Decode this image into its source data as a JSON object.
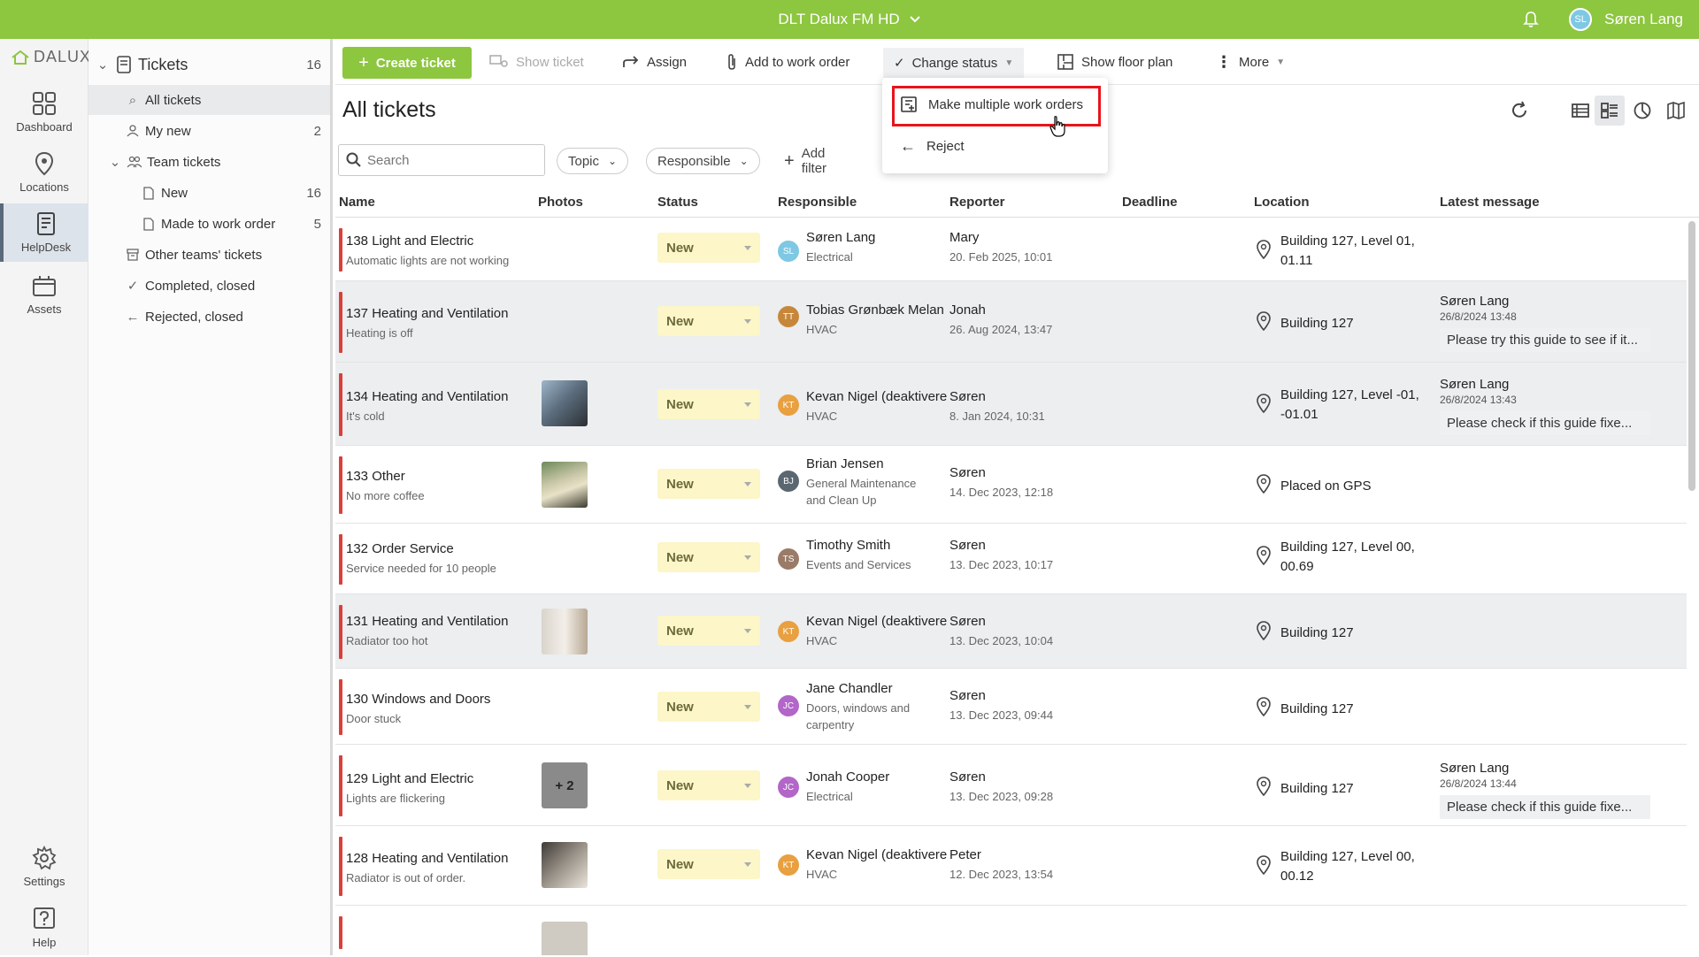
{
  "topbar": {
    "title": "DLT Dalux FM HD",
    "user_initials": "SL",
    "user_name": "Søren Lang"
  },
  "logo": {
    "text": "DALUX"
  },
  "leftnav": {
    "items": [
      {
        "label": "Dashboard",
        "icon": "grid-icon"
      },
      {
        "label": "Locations",
        "icon": "location-pin-icon"
      },
      {
        "label": "HelpDesk",
        "icon": "helpdesk-icon"
      },
      {
        "label": "Assets",
        "icon": "assets-icon"
      },
      {
        "label": "Settings",
        "icon": "gear-icon"
      },
      {
        "label": "Help",
        "icon": "help-icon"
      }
    ]
  },
  "tree": {
    "root": {
      "label": "Tickets",
      "count": "16"
    },
    "items": [
      {
        "label": "All tickets",
        "count": ""
      },
      {
        "label": "My new",
        "count": "2"
      },
      {
        "label": "Team tickets",
        "count": ""
      },
      {
        "label": "New",
        "count": "16"
      },
      {
        "label": "Made to work order",
        "count": "5"
      },
      {
        "label": "Other teams' tickets",
        "count": ""
      },
      {
        "label": "Completed, closed",
        "count": ""
      },
      {
        "label": "Rejected, closed",
        "count": ""
      }
    ]
  },
  "toolbar": {
    "create": "Create ticket",
    "show": "Show ticket",
    "assign": "Assign",
    "add_work_order": "Add to work order",
    "change_status": "Change status",
    "floor_plan": "Show floor plan",
    "more": "More"
  },
  "dropdown": {
    "item1": "Make multiple work orders",
    "item2": "Reject"
  },
  "page": {
    "title": "All tickets"
  },
  "filters": {
    "search_placeholder": "Search",
    "topic": "Topic",
    "responsible": "Responsible",
    "add_filter": "Add filter"
  },
  "columns": {
    "name": "Name",
    "photos": "Photos",
    "status": "Status",
    "responsible": "Responsible",
    "reporter": "Reporter",
    "deadline": "Deadline",
    "location": "Location",
    "latest": "Latest message"
  },
  "rows": [
    {
      "title": "138 Light and Electric",
      "sub": "Automatic lights are not working",
      "status": "New",
      "initials": "SL",
      "av_color": "#7ec8e3",
      "resp": "Søren Lang",
      "group": "Electrical",
      "reporter": "Mary",
      "date": "20. Feb 2025, 10:01",
      "location": "Building 127, Level 01, 01.11"
    },
    {
      "title": "137 Heating and Ventilation",
      "sub": "Heating is off",
      "status": "New",
      "initials": "TT",
      "av_color": "#c7873a",
      "resp": "Tobias Grønbæk Melan",
      "group": "HVAC",
      "reporter": "Jonah",
      "date": "26. Aug 2024, 13:47",
      "location": "Building 127",
      "msg_author": "Søren Lang",
      "msg_date": "26/8/2024 13:48",
      "msg_text": "Please try this guide to see if it..."
    },
    {
      "title": "134 Heating and Ventilation",
      "sub": "It's cold",
      "status": "New",
      "initials": "KT",
      "av_color": "#e8a040",
      "resp": "Kevan Nigel (deaktivere",
      "group": "HVAC",
      "reporter": "Søren",
      "date": "8. Jan 2024, 10:31",
      "location": "Building 127, Level -01, -01.01",
      "msg_author": "Søren Lang",
      "msg_date": "26/8/2024 13:43",
      "msg_text": "Please check if this guide fixe..."
    },
    {
      "title": "133 Other",
      "sub": "No more coffee",
      "status": "New",
      "initials": "BJ",
      "av_color": "#5b6770",
      "resp": "Brian Jensen",
      "group": "General Maintenance and Clean Up",
      "reporter": "Søren",
      "date": "14. Dec 2023, 12:18",
      "location": "Placed on GPS"
    },
    {
      "title": "132 Order Service",
      "sub": "Service needed for 10 people",
      "status": "New",
      "initials": "TS",
      "av_color": "#9a7b68",
      "resp": "Timothy Smith",
      "group": "Events and Services",
      "reporter": "Søren",
      "date": "13. Dec 2023, 10:17",
      "location": "Building 127, Level 00, 00.69"
    },
    {
      "title": "131 Heating and Ventilation",
      "sub": "Radiator too hot",
      "status": "New",
      "initials": "KT",
      "av_color": "#e8a040",
      "resp": "Kevan Nigel (deaktivere",
      "group": "HVAC",
      "reporter": "Søren",
      "date": "13. Dec 2023, 10:04",
      "location": "Building 127"
    },
    {
      "title": "130 Windows and Doors",
      "sub": "Door stuck",
      "status": "New",
      "initials": "JC",
      "av_color": "#b266c8",
      "resp": "Jane Chandler",
      "group": "Doors, windows and carpentry",
      "reporter": "Søren",
      "date": "13. Dec 2023, 09:44",
      "location": "Building 127"
    },
    {
      "title": "129 Light and Electric",
      "sub": "Lights are flickering",
      "status": "New",
      "initials": "JC",
      "av_color": "#b266c8",
      "resp": "Jonah Cooper",
      "group": "Electrical",
      "reporter": "Søren",
      "date": "13. Dec 2023, 09:28",
      "location": "Building 127",
      "photo_label": "+ 2",
      "msg_author": "Søren Lang",
      "msg_date": "26/8/2024 13:44",
      "msg_text": "Please check if this guide fixe..."
    },
    {
      "title": "128 Heating and Ventilation",
      "sub": "Radiator is out of order.",
      "status": "New",
      "initials": "KT",
      "av_color": "#e8a040",
      "resp": "Kevan Nigel (deaktivere",
      "group": "HVAC",
      "reporter": "Peter",
      "date": "12. Dec 2023, 13:54",
      "location": "Building 127, Level 00, 00.12"
    }
  ]
}
